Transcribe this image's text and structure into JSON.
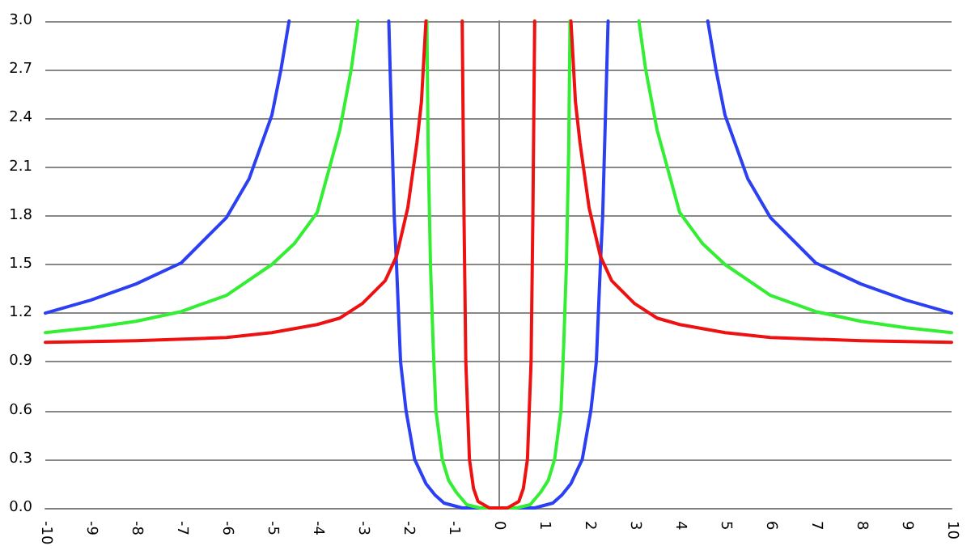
{
  "chart_data": {
    "type": "line",
    "xlim": [
      -10,
      10
    ],
    "xticks": [
      -10,
      -9,
      -8,
      -7,
      -6,
      -5,
      -4,
      -3,
      -2,
      -1,
      0,
      1,
      2,
      3,
      4,
      5,
      6,
      7,
      8,
      9,
      10
    ],
    "ylim": [
      0,
      3
    ],
    "yticks": [
      {
        "value": 0,
        "label": "0.0"
      },
      {
        "value": 0.3,
        "label": "0.3"
      },
      {
        "value": 0.6,
        "label": "0.6"
      },
      {
        "value": 0.9,
        "label": "0.9"
      },
      {
        "value": 1.2,
        "label": "1.2"
      },
      {
        "value": 1.5,
        "label": "1.5"
      },
      {
        "value": 1.8,
        "label": "1.8"
      },
      {
        "value": 2.1,
        "label": "2.1"
      },
      {
        "value": 2.4,
        "label": "2.4"
      },
      {
        "value": 2.7,
        "label": "2.7"
      },
      {
        "value": 3,
        "label": "3.0"
      }
    ],
    "grid": "y",
    "marker": "none",
    "line_style": "solid",
    "series": [
      {
        "color": "#2b40f2",
        "x": [
          -10,
          -9,
          -8,
          -7,
          -6,
          -5.5,
          -5,
          -4.8,
          -4.62,
          -3.5,
          -2.42,
          -2.35,
          -2.3,
          -2.25,
          -2.16,
          -2.04,
          -1.85,
          -1.6,
          -1.4,
          -1.2,
          -0.8,
          0,
          0.8,
          1.2,
          1.4,
          1.6,
          1.85,
          2.04,
          2.16,
          2.25,
          2.3,
          2.35,
          2.42,
          3.5,
          4.62,
          4.8,
          5,
          5.5,
          6,
          7,
          8,
          9,
          10
        ],
        "values": [
          1.2,
          1.28,
          1.38,
          1.51,
          1.79,
          2.03,
          2.42,
          2.7,
          3,
          null,
          3,
          2.3,
          1.8,
          1.5,
          0.9,
          0.6,
          0.3,
          0.15,
          0.08,
          0.03,
          0,
          0,
          0,
          0.03,
          0.08,
          0.15,
          0.3,
          0.6,
          0.9,
          1.5,
          1.8,
          2.3,
          3,
          null,
          3,
          2.7,
          2.42,
          2.03,
          1.79,
          1.51,
          1.38,
          1.28,
          1.2
        ]
      },
      {
        "color": "#33ee33",
        "x": [
          -10,
          -9,
          -8,
          -7,
          -6,
          -5,
          -4.5,
          -4,
          -3.5,
          -3.25,
          -3.1,
          -2.3,
          -1.58,
          -1.55,
          -1.5,
          -1.44,
          -1.38,
          -1.24,
          -1.1,
          -0.94,
          -0.7,
          -0.4,
          0,
          0.4,
          0.7,
          0.94,
          1.1,
          1.24,
          1.38,
          1.44,
          1.5,
          1.55,
          1.58,
          2.3,
          3.1,
          3.25,
          3.5,
          4,
          4.5,
          5,
          6,
          7,
          8,
          9,
          10
        ],
        "values": [
          1.08,
          1.11,
          1.15,
          1.21,
          1.31,
          1.5,
          1.63,
          1.82,
          2.33,
          2.7,
          3,
          null,
          3,
          2.2,
          1.5,
          1,
          0.6,
          0.3,
          0.17,
          0.1,
          0.02,
          0,
          0,
          0,
          0.02,
          0.1,
          0.17,
          0.3,
          0.6,
          1,
          1.5,
          2.2,
          3,
          null,
          3,
          2.7,
          2.33,
          1.82,
          1.63,
          1.5,
          1.31,
          1.21,
          1.15,
          1.11,
          1.08
        ]
      },
      {
        "color": "#ee1111",
        "x": [
          -10,
          -8,
          -6,
          -5,
          -4,
          -3.5,
          -3,
          -2.5,
          -2.25,
          -2,
          -1.8,
          -1.7,
          -1.6,
          -1.2,
          -0.8,
          -0.76,
          -0.72,
          -0.64,
          -0.55,
          -0.45,
          -0.2,
          0,
          0.2,
          0.45,
          0.55,
          0.64,
          0.72,
          0.76,
          0.8,
          1.2,
          1.6,
          1.7,
          1.8,
          2,
          2.25,
          2.5,
          3,
          3.5,
          4,
          5,
          6,
          8,
          10
        ],
        "values": [
          1.02,
          1.03,
          1.05,
          1.08,
          1.13,
          1.17,
          1.26,
          1.4,
          1.55,
          1.85,
          2.25,
          2.5,
          3,
          null,
          3,
          1.8,
          0.9,
          0.3,
          0.12,
          0.04,
          0,
          0,
          0,
          0.04,
          0.12,
          0.3,
          0.9,
          1.8,
          3,
          null,
          3,
          2.5,
          2.25,
          1.85,
          1.55,
          1.4,
          1.26,
          1.17,
          1.13,
          1.08,
          1.05,
          1.03,
          1.02
        ]
      }
    ]
  }
}
